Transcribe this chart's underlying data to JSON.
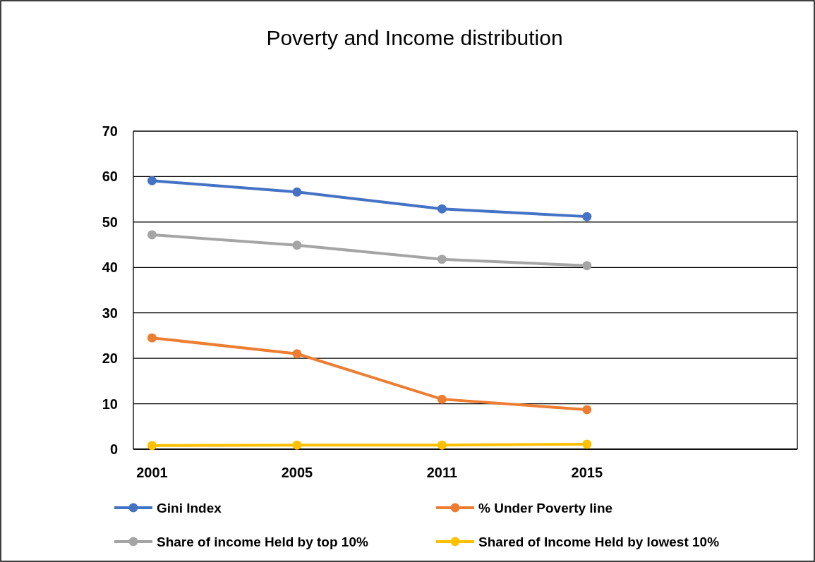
{
  "chart_data": {
    "type": "line",
    "title": "Poverty and Income distribution",
    "categories": [
      "2001",
      "2005",
      "2011",
      "2015"
    ],
    "series": [
      {
        "name": "Gini Index",
        "color": "#4472c4",
        "values": [
          59.1,
          56.6,
          52.9,
          51.2
        ]
      },
      {
        "name": "% Under Poverty line",
        "color": "#ed7d31",
        "values": [
          24.5,
          21.0,
          11.0,
          8.7
        ]
      },
      {
        "name": "Share of income Held by top 10%",
        "color": "#a5a5a5",
        "values": [
          47.2,
          44.9,
          41.8,
          40.4
        ]
      },
      {
        "name": "Shared of Income Held by lowest 10%",
        "color": "#ffc000",
        "values": [
          0.8,
          0.9,
          0.9,
          1.1
        ]
      }
    ],
    "ylim": [
      0,
      70
    ],
    "yticks": [
      0,
      10,
      20,
      30,
      40,
      50,
      60,
      70
    ],
    "grid": "y",
    "legend": "bottom",
    "marker": "circle",
    "line_style": "solid"
  }
}
